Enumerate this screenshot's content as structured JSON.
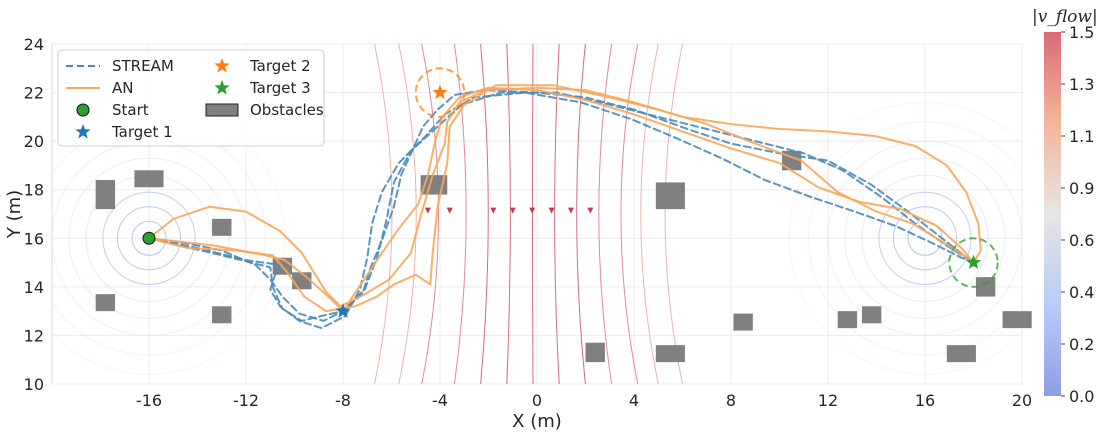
{
  "chart_data": {
    "type": "line",
    "xlabel": "X (m)",
    "ylabel": "Y (m)",
    "xlim": [
      -20,
      20
    ],
    "ylim": [
      10,
      24
    ],
    "xticks": [
      "-16",
      "-12",
      "-8",
      "-4",
      "0",
      "4",
      "8",
      "12",
      "16",
      "20"
    ],
    "yticks": [
      "10",
      "12",
      "14",
      "16",
      "18",
      "20",
      "22",
      "24"
    ],
    "grid": true,
    "legend_position": "upper-left",
    "legend": [
      "STREAM",
      "AN",
      "Start",
      "Target 1",
      "Target 2",
      "Target 3",
      "Obstacles"
    ],
    "colorbar": {
      "label": "|v_flow|",
      "ticks": [
        "0.0",
        "0.2",
        "0.4",
        "0.6",
        "0.9",
        "1.1",
        "1.3",
        "1.5"
      ],
      "range": [
        0,
        1.5
      ]
    },
    "start": {
      "name": "Start",
      "x": -16,
      "y": 16,
      "color": "#2ca02c"
    },
    "targets": [
      {
        "name": "Target 1",
        "x": -8,
        "y": 13,
        "color": "#1f77b4"
      },
      {
        "name": "Target 2",
        "x": -4,
        "y": 22,
        "color": "#ff7f0e"
      },
      {
        "name": "Target 3",
        "x": 18,
        "y": 15,
        "color": "#2ca02c"
      }
    ],
    "target_circles": [
      {
        "x": -4,
        "y": 22,
        "r": 1.0,
        "color": "#ff7f0e"
      },
      {
        "x": 18,
        "y": 15,
        "r": 1.0,
        "color": "#2ca02c"
      }
    ],
    "obstacles": [
      [
        -18.2,
        17.2,
        0.8,
        1.2
      ],
      [
        -16.6,
        18.1,
        1.2,
        0.7
      ],
      [
        -13.4,
        16.1,
        0.8,
        0.7
      ],
      [
        -10.9,
        14.5,
        0.8,
        0.7
      ],
      [
        -10.1,
        13.9,
        0.8,
        0.7
      ],
      [
        -18.2,
        13.0,
        0.8,
        0.7
      ],
      [
        -13.4,
        12.5,
        0.8,
        0.7
      ],
      [
        -4.8,
        17.8,
        1.1,
        0.8
      ],
      [
        4.9,
        17.2,
        1.2,
        1.1
      ],
      [
        10.1,
        18.8,
        0.8,
        0.8
      ],
      [
        2.0,
        10.9,
        0.8,
        0.8
      ],
      [
        4.9,
        10.9,
        1.2,
        0.7
      ],
      [
        8.1,
        12.2,
        0.8,
        0.7
      ],
      [
        12.4,
        12.3,
        0.8,
        0.7
      ],
      [
        13.4,
        12.5,
        0.8,
        0.7
      ],
      [
        18.1,
        13.6,
        0.8,
        0.8
      ],
      [
        16.9,
        10.9,
        1.2,
        0.7
      ],
      [
        19.2,
        12.3,
        1.2,
        0.7
      ]
    ],
    "series": [
      {
        "name": "STREAM",
        "color": "#4a8ab8",
        "style": "dashed",
        "paths": [
          [
            [
              -16,
              16
            ],
            [
              -14.5,
              15.8
            ],
            [
              -13,
              15.5
            ],
            [
              -11.6,
              14.9
            ],
            [
              -11,
              14.3
            ],
            [
              -10.5,
              13.6
            ],
            [
              -9.8,
              12.9
            ],
            [
              -8.8,
              12.6
            ],
            [
              -8,
              13
            ],
            [
              -7.2,
              13.7
            ],
            [
              -6.9,
              14.7
            ],
            [
              -6.4,
              15.9
            ],
            [
              -5.9,
              17.3
            ],
            [
              -5.6,
              18.6
            ],
            [
              -5.1,
              19.7
            ],
            [
              -4.7,
              20.6
            ],
            [
              -4.1,
              21.3
            ],
            [
              -3.4,
              21.9
            ],
            [
              -2.2,
              22.1
            ],
            [
              0,
              22
            ],
            [
              2,
              21.8
            ],
            [
              4,
              21.3
            ],
            [
              6.2,
              20.5
            ],
            [
              8,
              19.9
            ],
            [
              10,
              19.5
            ],
            [
              12,
              19.2
            ],
            [
              13.8,
              18.2
            ],
            [
              15.3,
              17.1
            ],
            [
              16.7,
              16
            ],
            [
              17.6,
              15.3
            ],
            [
              18,
              15
            ]
          ],
          [
            [
              -16,
              16
            ],
            [
              -14,
              15.6
            ],
            [
              -12,
              15.1
            ],
            [
              -10.6,
              14.9
            ],
            [
              -10.8,
              14.5
            ],
            [
              -11,
              13.9
            ],
            [
              -10.6,
              13.2
            ],
            [
              -9.8,
              12.6
            ],
            [
              -8.9,
              12.3
            ],
            [
              -7.9,
              12.8
            ],
            [
              -7.3,
              13.9
            ],
            [
              -7,
              15.2
            ],
            [
              -6.8,
              16.6
            ],
            [
              -6.4,
              17.9
            ],
            [
              -5.7,
              19.1
            ],
            [
              -4.6,
              20.2
            ],
            [
              -3.8,
              21.1
            ],
            [
              -2.6,
              21.8
            ],
            [
              -0.5,
              22
            ],
            [
              1.8,
              21.6
            ],
            [
              3.9,
              20.9
            ],
            [
              5.8,
              20.1
            ],
            [
              7.6,
              19.3
            ],
            [
              9.4,
              18.4
            ],
            [
              11.3,
              17.7
            ],
            [
              13.1,
              17.1
            ],
            [
              14.8,
              16.5
            ],
            [
              16.3,
              15.8
            ],
            [
              17.5,
              15.2
            ],
            [
              18,
              15
            ]
          ],
          [
            [
              -16,
              16
            ],
            [
              -13,
              15.3
            ],
            [
              -11,
              14.8
            ],
            [
              -10.9,
              14.0
            ],
            [
              -10.5,
              13.1
            ],
            [
              -9.7,
              12.6
            ],
            [
              -8.9,
              12.8
            ],
            [
              -8,
              13
            ],
            [
              -7.1,
              13.9
            ],
            [
              -6.6,
              15.2
            ],
            [
              -6.2,
              16.8
            ],
            [
              -5.9,
              18.3
            ],
            [
              -5.2,
              19.6
            ],
            [
              -4.1,
              20.6
            ],
            [
              -3.1,
              21.5
            ],
            [
              -1.5,
              22
            ],
            [
              0.8,
              22
            ],
            [
              3,
              21.5
            ],
            [
              5,
              21
            ],
            [
              7,
              20.5
            ],
            [
              9,
              20
            ],
            [
              11,
              19.5
            ],
            [
              12.6,
              18.8
            ],
            [
              14.2,
              17.7
            ],
            [
              15.6,
              16.6
            ],
            [
              16.9,
              15.7
            ],
            [
              18,
              15
            ]
          ]
        ]
      },
      {
        "name": "AN",
        "color": "#fba556",
        "style": "solid",
        "paths": [
          [
            [
              -16,
              16
            ],
            [
              -15,
              16.8
            ],
            [
              -13.5,
              17.3
            ],
            [
              -12,
              17.1
            ],
            [
              -10.6,
              16.3
            ],
            [
              -9.7,
              15.4
            ],
            [
              -9.2,
              14.6
            ],
            [
              -8.7,
              13.8
            ],
            [
              -8.1,
              13.2
            ],
            [
              -7.1,
              13.7
            ],
            [
              -6.1,
              14.3
            ],
            [
              -5.2,
              15.4
            ],
            [
              -4.8,
              16.9
            ],
            [
              -4.3,
              18.6
            ],
            [
              -3.8,
              19.9
            ],
            [
              -3.7,
              20.8
            ],
            [
              -3.2,
              21.6
            ],
            [
              -2.1,
              22.1
            ],
            [
              0,
              22.2
            ],
            [
              2,
              22.1
            ],
            [
              4,
              21.6
            ],
            [
              6,
              21
            ],
            [
              8,
              20.7
            ],
            [
              10,
              20.5
            ],
            [
              12,
              20.4
            ],
            [
              14,
              20.2
            ],
            [
              15.6,
              19.8
            ],
            [
              16.9,
              19
            ],
            [
              17.7,
              17.9
            ],
            [
              18.2,
              16.6
            ],
            [
              18.3,
              15.5
            ],
            [
              18,
              15
            ]
          ],
          [
            [
              -16,
              16
            ],
            [
              -14.4,
              15.6
            ],
            [
              -12.4,
              15.5
            ],
            [
              -10.9,
              15.3
            ],
            [
              -10.3,
              14.6
            ],
            [
              -9.6,
              13.6
            ],
            [
              -8.7,
              13
            ],
            [
              -7.5,
              13.2
            ],
            [
              -6.6,
              13.6
            ],
            [
              -5.9,
              14.1
            ],
            [
              -5.0,
              14.5
            ],
            [
              -4.4,
              14.1
            ],
            [
              -4.3,
              15.4
            ],
            [
              -4.1,
              17.3
            ],
            [
              -3.7,
              19.1
            ],
            [
              -3.6,
              20.6
            ],
            [
              -3.0,
              21.5
            ],
            [
              -1.7,
              22.3
            ],
            [
              0.7,
              22.3
            ],
            [
              3,
              21.8
            ],
            [
              5,
              21.3
            ],
            [
              7,
              20.7
            ],
            [
              9,
              19.9
            ],
            [
              10.9,
              19.2
            ],
            [
              12.4,
              17.9
            ],
            [
              14,
              17.1
            ],
            [
              15.5,
              16.6
            ],
            [
              16.8,
              15.8
            ],
            [
              17.6,
              15.3
            ],
            [
              18,
              15
            ]
          ],
          [
            [
              -16,
              16
            ],
            [
              -13.3,
              15.7
            ],
            [
              -11.2,
              15.3
            ],
            [
              -10.4,
              15.1
            ],
            [
              -9.5,
              14.4
            ],
            [
              -8.5,
              13.5
            ],
            [
              -8,
              13
            ],
            [
              -7.4,
              13.9
            ],
            [
              -6.6,
              15.1
            ],
            [
              -5.7,
              16.4
            ],
            [
              -4.9,
              17.4
            ],
            [
              -4.5,
              18.6
            ],
            [
              -4.2,
              20.0
            ],
            [
              -3.9,
              21.0
            ],
            [
              -3.2,
              21.8
            ],
            [
              -2,
              22.2
            ],
            [
              0,
              22.1
            ],
            [
              2,
              21.7
            ],
            [
              4,
              21.1
            ],
            [
              6,
              20.4
            ],
            [
              8,
              19.7
            ],
            [
              10,
              19.1
            ],
            [
              11.6,
              18.1
            ],
            [
              13.3,
              17.5
            ],
            [
              15,
              17.2
            ],
            [
              16.5,
              16.5
            ],
            [
              17.5,
              15.6
            ],
            [
              18,
              15
            ]
          ]
        ]
      }
    ]
  }
}
